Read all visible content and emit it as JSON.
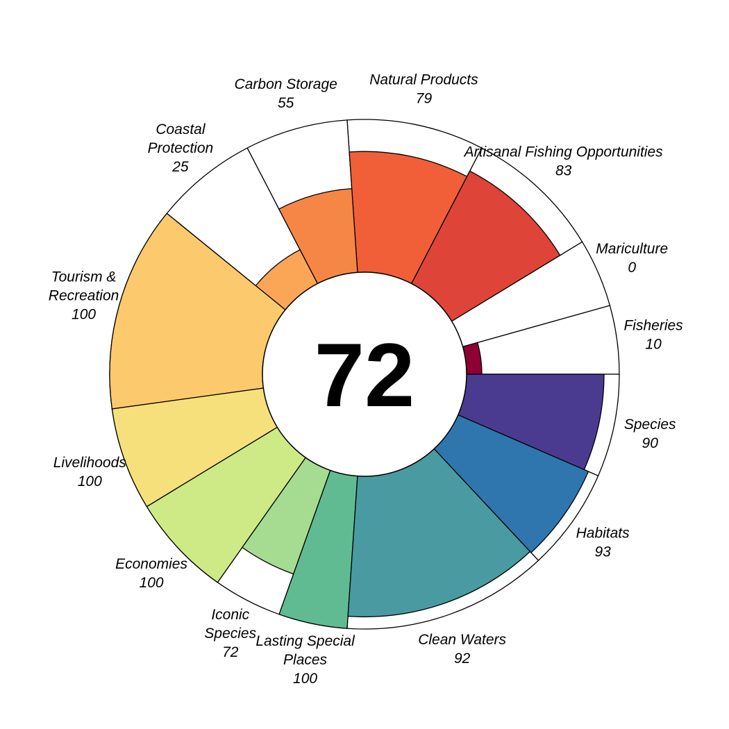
{
  "chart_data": {
    "type": "flower",
    "center_score": "72",
    "max_score": 100,
    "petals": [
      {
        "name": "Fisheries",
        "label_lines": [
          "Fisheries"
        ],
        "value": 10,
        "color": "#8e0033",
        "weight": 1
      },
      {
        "name": "Mariculture",
        "label_lines": [
          "Mariculture"
        ],
        "value": 0,
        "color": "#c9324a",
        "weight": 1
      },
      {
        "name": "Artisanal Fishing Opportunities",
        "label_lines": [
          "Artisanal Fishing Opportunities"
        ],
        "value": 83,
        "color": "#de4538",
        "weight": 2
      },
      {
        "name": "Natural Products",
        "label_lines": [
          "Natural Products"
        ],
        "value": 79,
        "color": "#f05f38",
        "weight": 2
      },
      {
        "name": "Carbon Storage",
        "label_lines": [
          "Carbon Storage"
        ],
        "value": 55,
        "color": "#f68646",
        "weight": 1.5
      },
      {
        "name": "Coastal Protection",
        "label_lines": [
          "Coastal",
          "Protection"
        ],
        "value": 25,
        "color": "#fba657",
        "weight": 1.5
      },
      {
        "name": "Tourism & Recreation",
        "label_lines": [
          "Tourism &",
          "Recreation"
        ],
        "value": 100,
        "color": "#fdc96d",
        "weight": 3
      },
      {
        "name": "Livelihoods",
        "label_lines": [
          "Livelihoods"
        ],
        "value": 100,
        "color": "#f5e07c",
        "weight": 1.5
      },
      {
        "name": "Economies",
        "label_lines": [
          "Economies"
        ],
        "value": 100,
        "color": "#cdea86",
        "weight": 1.5
      },
      {
        "name": "Iconic Species",
        "label_lines": [
          "Iconic",
          "Species"
        ],
        "value": 72,
        "color": "#a6dc91",
        "weight": 1
      },
      {
        "name": "Lasting Special Places",
        "label_lines": [
          "Lasting Special",
          "Places"
        ],
        "value": 100,
        "color": "#60bb93",
        "weight": 1
      },
      {
        "name": "Clean Waters",
        "label_lines": [
          "Clean Waters"
        ],
        "value": 92,
        "color": "#499ba1",
        "weight": 3
      },
      {
        "name": "Habitats",
        "label_lines": [
          "Habitats"
        ],
        "value": 93,
        "color": "#3076ae",
        "weight": 1.5
      },
      {
        "name": "Species",
        "label_lines": [
          "Species"
        ],
        "value": 90,
        "color": "#4b3b90",
        "weight": 1.5
      }
    ]
  }
}
